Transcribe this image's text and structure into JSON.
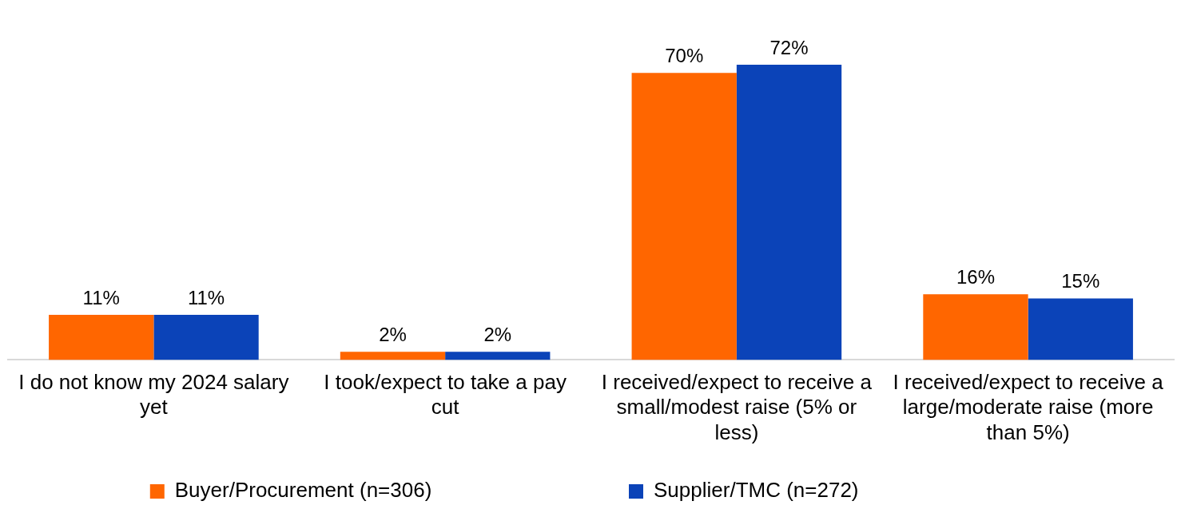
{
  "chart_data": {
    "type": "bar",
    "categories": [
      "I do not know my 2024 salary yet",
      "I took/expect to take a pay cut",
      "I received/expect to receive a small/modest raise (5% or less)",
      "I received/expect to receive a large/moderate raise (more than 5%)"
    ],
    "series": [
      {
        "name": "Buyer/Procurement (n=306)",
        "color": "#ff6600",
        "values": [
          11,
          2,
          70,
          16
        ],
        "value_labels": [
          "11%",
          "2%",
          "70%",
          "16%"
        ]
      },
      {
        "name": "Supplier/TMC (n=272)",
        "color": "#0b43b8",
        "values": [
          11,
          2,
          72,
          15
        ],
        "value_labels": [
          "11%",
          "2%",
          "72%",
          "15%"
        ]
      }
    ],
    "legend": "bottom",
    "grid": false
  }
}
